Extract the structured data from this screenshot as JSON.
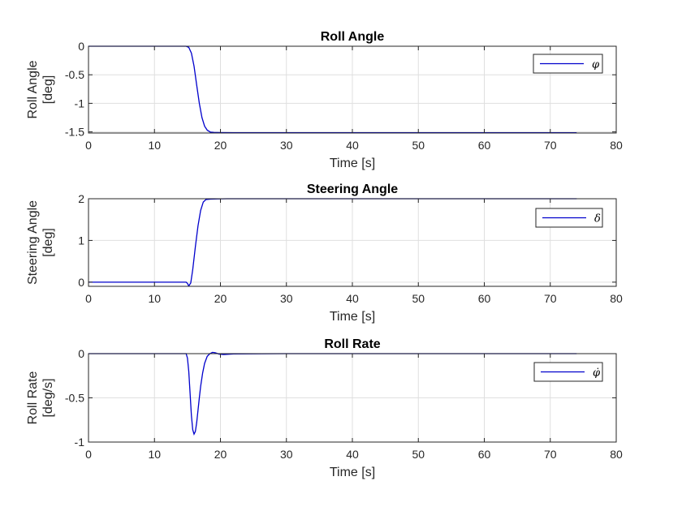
{
  "colors": {
    "line": "#0000cc",
    "grid": "#dfdfdf",
    "axis": "#262626",
    "background": "#ffffff"
  },
  "chart_data": [
    {
      "type": "line",
      "title": "Roll Angle",
      "xlabel": "Time [s]",
      "ylabel_lines": [
        "Roll Angle",
        "[deg]"
      ],
      "xlim": [
        0,
        80
      ],
      "ylim": [
        -1.52,
        0
      ],
      "xticks": [
        0,
        10,
        20,
        30,
        40,
        50,
        60,
        70,
        80
      ],
      "yticks": [
        0,
        -0.5,
        -1,
        -1.5
      ],
      "xtick_labels": [
        "0",
        "10",
        "20",
        "30",
        "40",
        "50",
        "60",
        "70",
        "80"
      ],
      "ytick_labels": [
        "0",
        "-0.5",
        "-1",
        "-1.5"
      ],
      "grid": true,
      "legend_position": "top-right",
      "series": [
        {
          "name": "φ",
          "x": [
            0,
            14.8,
            15.2,
            15.6,
            16.0,
            16.4,
            16.8,
            17.2,
            17.6,
            18.0,
            18.5,
            19.0,
            20.0,
            22.0,
            30,
            40,
            50,
            60,
            70,
            74
          ],
          "y": [
            0,
            0,
            -0.02,
            -0.12,
            -0.35,
            -0.68,
            -1.0,
            -1.25,
            -1.4,
            -1.47,
            -1.505,
            -1.51,
            -1.513,
            -1.515,
            -1.515,
            -1.515,
            -1.515,
            -1.515,
            -1.515,
            -1.515
          ]
        }
      ]
    },
    {
      "type": "line",
      "title": "Steering Angle",
      "xlabel": "Time [s]",
      "ylabel_lines": [
        "Steering Angle",
        "[deg]"
      ],
      "xlim": [
        0,
        80
      ],
      "ylim": [
        -0.1,
        2
      ],
      "xticks": [
        0,
        10,
        20,
        30,
        40,
        50,
        60,
        70,
        80
      ],
      "yticks": [
        0,
        1,
        2
      ],
      "xtick_labels": [
        "0",
        "10",
        "20",
        "30",
        "40",
        "50",
        "60",
        "70",
        "80"
      ],
      "ytick_labels": [
        "0",
        "1",
        "2"
      ],
      "grid": true,
      "legend_position": "top-right",
      "series": [
        {
          "name": "δ",
          "x": [
            0,
            14.8,
            15.0,
            15.2,
            15.5,
            15.8,
            16.2,
            16.6,
            17.0,
            17.4,
            17.8,
            18.5,
            19.5,
            21,
            30,
            40,
            50,
            60,
            70,
            74
          ],
          "y": [
            0,
            0,
            -0.03,
            -0.09,
            -0.02,
            0.3,
            0.85,
            1.35,
            1.72,
            1.92,
            1.98,
            1.99,
            1.995,
            2.0,
            2.0,
            2.0,
            2.0,
            2.0,
            2.0,
            2.0
          ]
        }
      ]
    },
    {
      "type": "line",
      "title": "Roll Rate",
      "xlabel": "Time [s]",
      "ylabel_lines": [
        "Roll Rate",
        "[deg/s]"
      ],
      "xlim": [
        0,
        80
      ],
      "ylim": [
        -1,
        0
      ],
      "xticks": [
        0,
        10,
        20,
        30,
        40,
        50,
        60,
        70,
        80
      ],
      "yticks": [
        0,
        -0.5,
        -1
      ],
      "xtick_labels": [
        "0",
        "10",
        "20",
        "30",
        "40",
        "50",
        "60",
        "70",
        "80"
      ],
      "ytick_labels": [
        "0",
        "-0.5",
        "-1"
      ],
      "grid": true,
      "legend_position": "top-right",
      "series": [
        {
          "name": "φ̇",
          "x": [
            0,
            14.8,
            15.0,
            15.2,
            15.4,
            15.6,
            15.8,
            16.0,
            16.2,
            16.4,
            16.6,
            16.8,
            17.0,
            17.3,
            17.6,
            18.0,
            18.4,
            18.8,
            19.2,
            19.8,
            20.5,
            22,
            30,
            40,
            50,
            60,
            70,
            74
          ],
          "y": [
            0,
            0,
            -0.05,
            -0.2,
            -0.45,
            -0.7,
            -0.86,
            -0.91,
            -0.88,
            -0.78,
            -0.64,
            -0.5,
            -0.37,
            -0.22,
            -0.11,
            -0.03,
            0.0,
            0.015,
            0.01,
            -0.005,
            -0.01,
            -0.003,
            0,
            0,
            0,
            0,
            0,
            0
          ]
        }
      ]
    }
  ]
}
